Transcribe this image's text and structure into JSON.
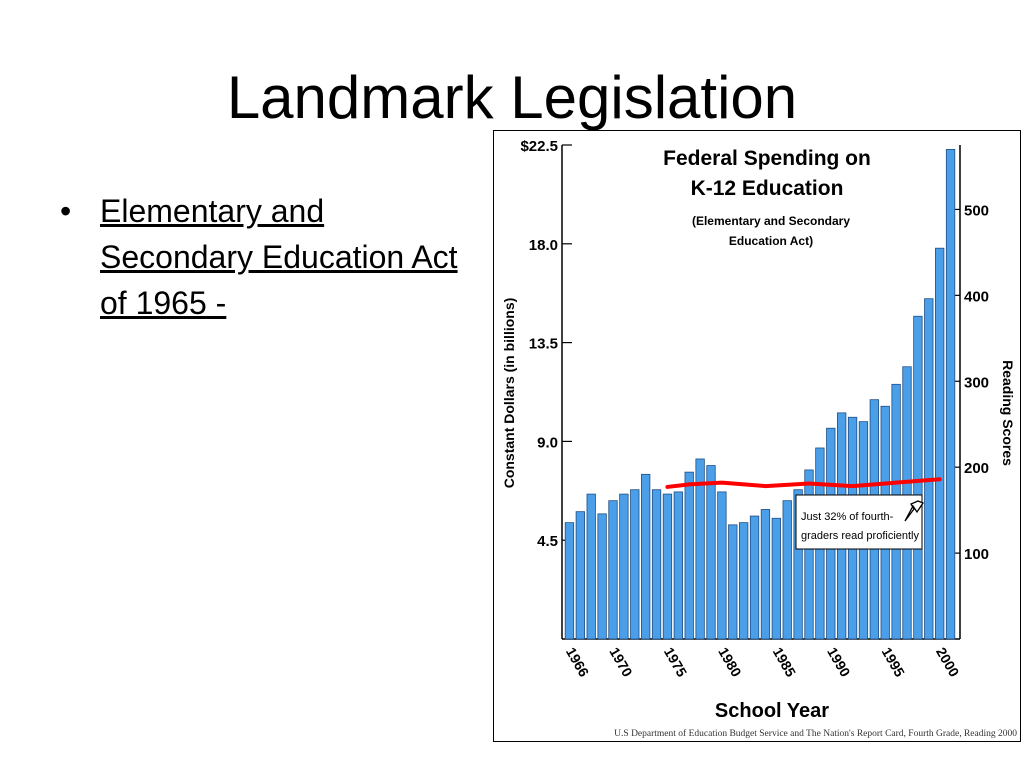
{
  "slide": {
    "title": "Landmark Legislation",
    "bullets": [
      {
        "bullet": "•",
        "text": "Elementary and Secondary Education Act of 1965 -"
      }
    ]
  },
  "chart_data": {
    "type": "bar",
    "title": "Federal Spending on K-12 Education",
    "subtitle": "(Elementary and Secondary Education Act)",
    "xlabel": "School Year",
    "ylabel": "Constant Dollars (in billions)",
    "y2label": "Reading Scores",
    "ylim": [
      0,
      22.5
    ],
    "yticks": [
      "$22.5",
      "18.0",
      "13.5",
      "9.0",
      "4.5"
    ],
    "y2lim": [
      0,
      575
    ],
    "y2ticks": [
      "500",
      "400",
      "300",
      "200",
      "100"
    ],
    "xticks": [
      "1966",
      "1970",
      "1975",
      "1980",
      "1985",
      "1990",
      "1995",
      "2000"
    ],
    "bar_color": "#4a9fe8",
    "categories": [
      1966,
      1967,
      1968,
      1969,
      1970,
      1971,
      1972,
      1973,
      1974,
      1975,
      1976,
      1977,
      1978,
      1979,
      1980,
      1981,
      1982,
      1983,
      1984,
      1985,
      1986,
      1987,
      1988,
      1989,
      1990,
      1991,
      1992,
      1993,
      1994,
      1995,
      1996,
      1997,
      1998,
      1999,
      2000,
      2001
    ],
    "values": [
      5.3,
      5.8,
      6.6,
      5.7,
      6.3,
      6.6,
      6.8,
      7.5,
      6.8,
      6.6,
      6.7,
      7.6,
      8.2,
      7.9,
      6.7,
      5.2,
      5.3,
      5.6,
      5.9,
      5.5,
      6.3,
      6.8,
      7.7,
      8.7,
      9.6,
      10.3,
      10.1,
      9.9,
      10.9,
      10.6,
      11.6,
      12.4,
      14.7,
      15.5,
      17.8,
      22.3
    ],
    "reading_line": {
      "color": "#ff0000",
      "x": [
        1975,
        1977,
        1980,
        1984,
        1988,
        1992,
        1996,
        2000
      ],
      "y": [
        177,
        180,
        182,
        178,
        181,
        178,
        182,
        186
      ]
    },
    "annotation": "Just 32% of fourth-graders read proficiently",
    "source": "U.S Department of Education Budget Service and The Nation's Report Card, Fourth Grade, Reading 2000"
  }
}
